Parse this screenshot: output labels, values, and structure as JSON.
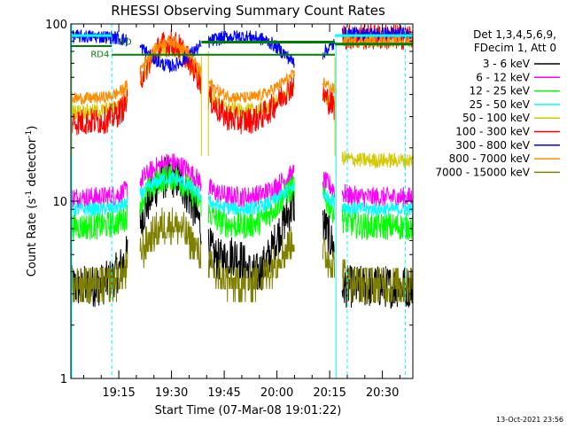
{
  "chart_data": {
    "type": "line",
    "title": "RHESSI Observing Summary Count Rates",
    "xlabel": "Start Time (07-Mar-08 19:01:22)",
    "ylabel": "Count Rate (s",
    "ylabel_sup": "-1",
    "ylabel_tail": " detector",
    "ylabel_close": ")",
    "yscale": "log",
    "ylim": [
      1,
      100
    ],
    "yticks": [
      {
        "value": 1,
        "label": "1"
      },
      {
        "value": 10,
        "label": "10"
      },
      {
        "value": 100,
        "label": "100"
      }
    ],
    "xlim": [
      "19:01:22",
      "20:38:40"
    ],
    "xticks": [
      "19:15",
      "19:30",
      "19:45",
      "20:00",
      "20:15",
      "20:30"
    ],
    "legend_header": [
      "Det 1,3,4,5,6,9,",
      "FDecim 1, Att 0"
    ],
    "legend_position": "right",
    "series": [
      {
        "name": "3 - 6 keV",
        "color": "#000000"
      },
      {
        "name": "6 - 12 keV",
        "color": "#ff00ff"
      },
      {
        "name": "12 - 25 keV",
        "color": "#00ff00"
      },
      {
        "name": "25 - 50 keV",
        "color": "#00ffff"
      },
      {
        "name": "50 - 100 keV",
        "color": "#d4c800"
      },
      {
        "name": "100 - 300 keV",
        "color": "#ff0000"
      },
      {
        "name": "300 - 800 keV",
        "color": "#0000ff"
      },
      {
        "name": "800 - 7000 keV",
        "color": "#ff8c00"
      },
      {
        "name": "7000 - 15000 keV",
        "color": "#808000"
      }
    ],
    "annotations": [
      "RD",
      "RD4"
    ],
    "footer_timestamp": "13-Oct-2021 23:56"
  }
}
